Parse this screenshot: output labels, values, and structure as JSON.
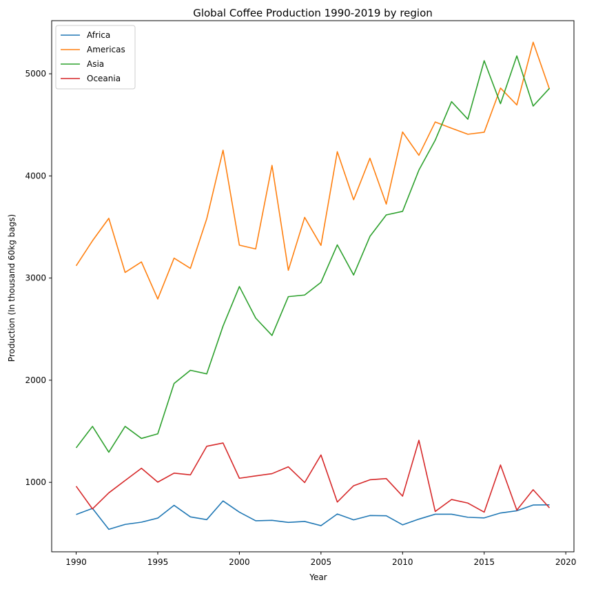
{
  "chart_data": {
    "type": "line",
    "title": "Global Coffee Production 1990-2019 by region",
    "xlabel": "Year",
    "ylabel": "Production (In thousand 60kg bags)",
    "xlim": [
      1988.5,
      2020.5
    ],
    "ylim": [
      320,
      5520
    ],
    "xticks": [
      1990,
      1995,
      2000,
      2005,
      2010,
      2015,
      2020
    ],
    "yticks": [
      1000,
      2000,
      3000,
      4000,
      5000
    ],
    "grid": false,
    "legend_position": "top-left",
    "x": [
      1990,
      1991,
      1992,
      1993,
      1994,
      1995,
      1996,
      1997,
      1998,
      1999,
      2000,
      2001,
      2002,
      2003,
      2004,
      2005,
      2006,
      2007,
      2008,
      2009,
      2010,
      2011,
      2012,
      2013,
      2014,
      2015,
      2016,
      2017,
      2018,
      2019
    ],
    "series": [
      {
        "name": "Africa",
        "color": "#1f77b4",
        "values": [
          685,
          745,
          540,
          588,
          610,
          650,
          775,
          662,
          635,
          818,
          708,
          624,
          628,
          608,
          617,
          576,
          690,
          633,
          675,
          673,
          584,
          640,
          688,
          688,
          658,
          652,
          700,
          722,
          778,
          780
        ]
      },
      {
        "name": "Americas",
        "color": "#ff7f0e",
        "values": [
          3120,
          3365,
          3585,
          3055,
          3158,
          2795,
          3195,
          3095,
          3580,
          4252,
          3322,
          3285,
          4103,
          3076,
          3594,
          3320,
          4237,
          3767,
          4173,
          3724,
          4430,
          4202,
          4528,
          4467,
          4408,
          4428,
          4860,
          4695,
          5309,
          4850
        ]
      },
      {
        "name": "Asia",
        "color": "#2ca02c",
        "values": [
          1338,
          1548,
          1295,
          1548,
          1430,
          1475,
          1968,
          2097,
          2062,
          2530,
          2917,
          2608,
          2438,
          2818,
          2834,
          2958,
          3325,
          3030,
          3408,
          3618,
          3653,
          4057,
          4350,
          4727,
          4555,
          5128,
          4707,
          5175,
          4684,
          4858
        ]
      },
      {
        "name": "Oceania",
        "color": "#d62728",
        "values": [
          962,
          740,
          897,
          1018,
          1138,
          1002,
          1090,
          1073,
          1353,
          1385,
          1040,
          1063,
          1085,
          1152,
          998,
          1268,
          807,
          967,
          1025,
          1037,
          865,
          1412,
          715,
          832,
          797,
          708,
          1170,
          728,
          928,
          750
        ]
      }
    ]
  }
}
